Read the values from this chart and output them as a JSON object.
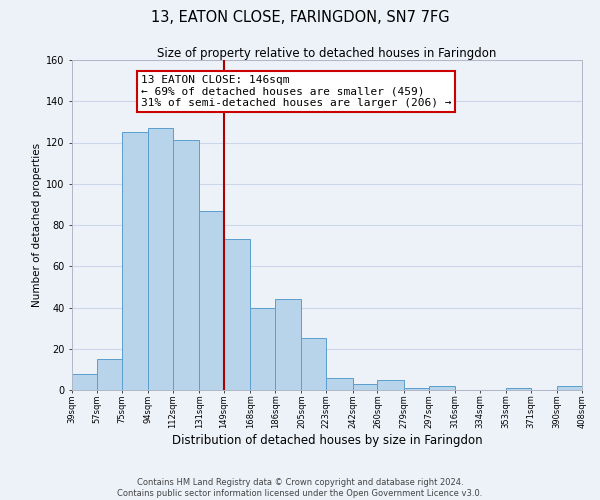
{
  "title": "13, EATON CLOSE, FARINGDON, SN7 7FG",
  "subtitle": "Size of property relative to detached houses in Faringdon",
  "xlabel": "Distribution of detached houses by size in Faringdon",
  "ylabel": "Number of detached properties",
  "bar_edges": [
    39,
    57,
    75,
    94,
    112,
    131,
    149,
    168,
    186,
    205,
    223,
    242,
    260,
    279,
    297,
    316,
    334,
    353,
    371,
    390,
    408
  ],
  "bar_heights": [
    8,
    15,
    125,
    127,
    121,
    87,
    73,
    40,
    44,
    25,
    6,
    3,
    5,
    1,
    2,
    0,
    0,
    1,
    0,
    2
  ],
  "bar_color": "#b8d4ea",
  "bar_edge_color": "#5a9ecf",
  "reference_line_x": 149,
  "reference_line_color": "#aa0000",
  "annotation_line1": "13 EATON CLOSE: 146sqm",
  "annotation_line2": "← 69% of detached houses are smaller (459)",
  "annotation_line3": "31% of semi-detached houses are larger (206) →",
  "ylim": [
    0,
    160
  ],
  "yticks": [
    0,
    20,
    40,
    60,
    80,
    100,
    120,
    140,
    160
  ],
  "tick_labels": [
    "39sqm",
    "57sqm",
    "75sqm",
    "94sqm",
    "112sqm",
    "131sqm",
    "149sqm",
    "168sqm",
    "186sqm",
    "205sqm",
    "223sqm",
    "242sqm",
    "260sqm",
    "279sqm",
    "297sqm",
    "316sqm",
    "334sqm",
    "353sqm",
    "371sqm",
    "390sqm",
    "408sqm"
  ],
  "grid_color": "#ccd8ea",
  "background_color": "#edf2f9",
  "footer_line1": "Contains HM Land Registry data © Crown copyright and database right 2024.",
  "footer_line2": "Contains public sector information licensed under the Open Government Licence v3.0.",
  "title_fontsize": 10.5,
  "subtitle_fontsize": 8.5,
  "xlabel_fontsize": 8.5,
  "ylabel_fontsize": 7.5,
  "annotation_fontsize": 8.0,
  "footer_fontsize": 6.0
}
